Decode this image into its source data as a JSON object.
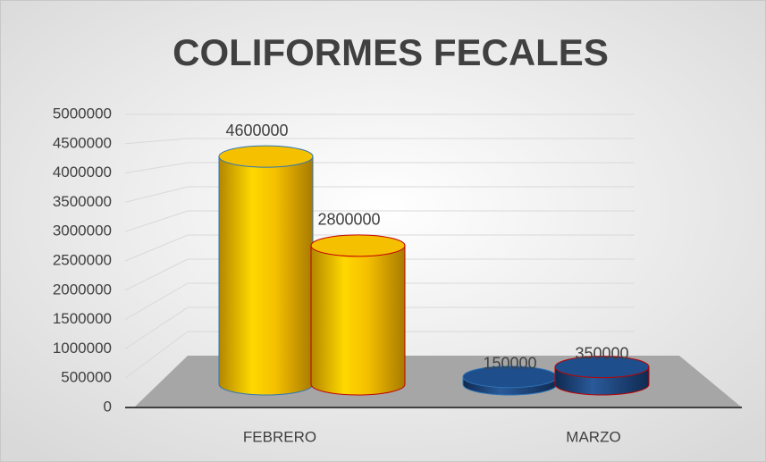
{
  "chart_data": {
    "type": "bar3d",
    "title": "COLIFORMES FECALES",
    "categories": [
      "FEBRERO",
      "MARZO"
    ],
    "series": [
      {
        "values": [
          4600000,
          150000
        ]
      },
      {
        "values": [
          2800000,
          350000
        ]
      }
    ],
    "category_colors": [
      "#f5c000",
      "#1f4e8c"
    ],
    "ylim": [
      0,
      5000000
    ],
    "yticks": [
      0,
      500000,
      1000000,
      1500000,
      2000000,
      2500000,
      3000000,
      3500000,
      4000000,
      4500000,
      5000000
    ],
    "grid": true
  }
}
